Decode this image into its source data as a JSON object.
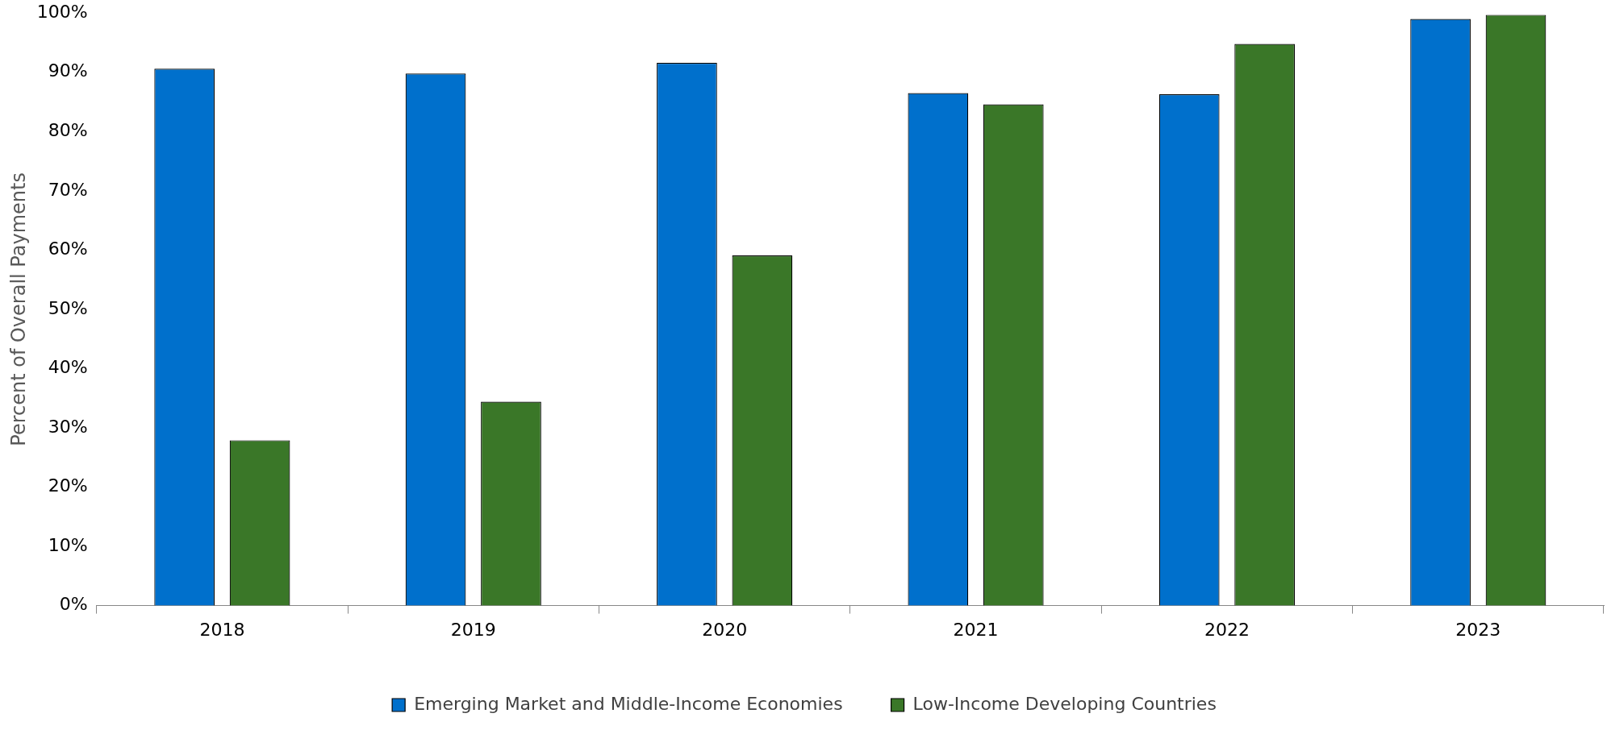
{
  "chart_data": {
    "type": "bar",
    "ylabel": "Percent of Overall Payments",
    "categories": [
      "2018",
      "2019",
      "2020",
      "2021",
      "2022",
      "2023"
    ],
    "series": [
      {
        "name": "Emerging Market and Middle-Income Economies",
        "color": "#0070cc",
        "values": [
          90.6,
          89.8,
          91.6,
          86.5,
          86.3,
          99
        ]
      },
      {
        "name": "Low-Income Developing Countries",
        "color": "#3a7728",
        "values": [
          27.9,
          34.4,
          59.1,
          84.6,
          94.8,
          99.7
        ]
      }
    ],
    "ylim": [
      0,
      100
    ],
    "yticks": [
      {
        "value": 0,
        "label": "0%"
      },
      {
        "value": 10,
        "label": "10%"
      },
      {
        "value": 20,
        "label": "20%"
      },
      {
        "value": 30,
        "label": "30%"
      },
      {
        "value": 40,
        "label": "40%"
      },
      {
        "value": 50,
        "label": "50%"
      },
      {
        "value": 60,
        "label": "60%"
      },
      {
        "value": 70,
        "label": "70%"
      },
      {
        "value": 80,
        "label": "80%"
      },
      {
        "value": 90,
        "label": "90%"
      },
      {
        "value": 100,
        "label": "100%"
      }
    ],
    "grid": false,
    "legend": "bottom"
  }
}
